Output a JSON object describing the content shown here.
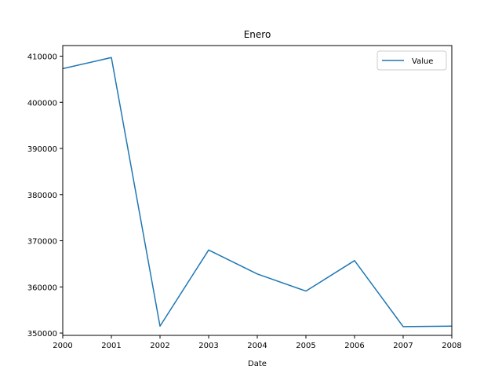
{
  "chart_data": {
    "type": "line",
    "title": "Enero",
    "xlabel": "Date",
    "ylabel": "",
    "x": [
      2000,
      2001,
      2002,
      2003,
      2004,
      2005,
      2006,
      2007,
      2008
    ],
    "xlim": [
      2000,
      2008
    ],
    "ylim": [
      349500,
      412300
    ],
    "x_ticks": [
      "2000",
      "2001",
      "2002",
      "2003",
      "2004",
      "2005",
      "2006",
      "2007",
      "2008"
    ],
    "y_ticks": [
      350000,
      360000,
      370000,
      380000,
      390000,
      400000,
      410000
    ],
    "y_tick_labels": [
      "350000",
      "360000",
      "370000",
      "380000",
      "390000",
      "400000",
      "410000"
    ],
    "grid": false,
    "legend_position": "top-right",
    "series": [
      {
        "name": "Value",
        "color": "#1f77b4",
        "values": [
          407300,
          409700,
          351500,
          368000,
          362800,
          359100,
          365700,
          351400,
          351500
        ]
      }
    ]
  }
}
